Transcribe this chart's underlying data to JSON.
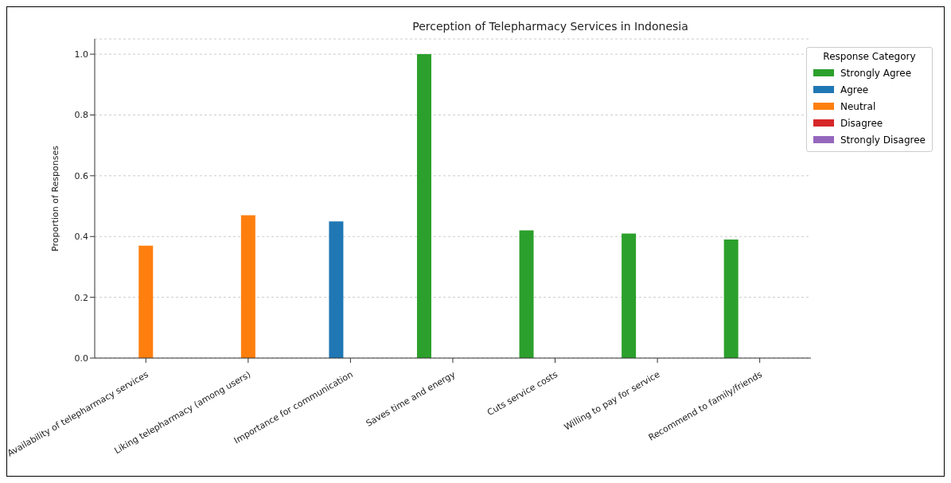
{
  "chart_data": {
    "type": "bar",
    "title": "Perception of Telepharmacy Services in Indonesia",
    "ylabel": "Proportion of Responses",
    "legend_title": "Response Category",
    "categories": [
      "Availability of telepharmacy services",
      "Liking telepharmacy (among users)",
      "Importance for communication",
      "Saves time and energy",
      "Cuts service costs",
      "Willing to pay for service",
      "Recommend to family/friends"
    ],
    "series": [
      {
        "name": "Strongly Agree",
        "color": "#2ca02c",
        "values": [
          0,
          0,
          0,
          1.0,
          0.42,
          0.41,
          0.39
        ]
      },
      {
        "name": "Agree",
        "color": "#1f77b4",
        "values": [
          0,
          0,
          0.45,
          0,
          0,
          0,
          0
        ]
      },
      {
        "name": "Neutral",
        "color": "#ff7f0e",
        "values": [
          0.37,
          0.47,
          0,
          0,
          0,
          0,
          0
        ]
      },
      {
        "name": "Disagree",
        "color": "#d62728",
        "values": [
          0,
          0,
          0,
          0,
          0,
          0,
          0
        ]
      },
      {
        "name": "Strongly Disagree",
        "color": "#9467bd",
        "values": [
          0,
          0,
          0,
          0,
          0,
          0,
          0
        ]
      }
    ],
    "ylim": [
      0,
      1.05
    ],
    "yticks": [
      {
        "value": 0,
        "label": "0.0"
      },
      0.2,
      0.4,
      0.6,
      0.8,
      {
        "value": 1,
        "label": "1.0"
      }
    ],
    "grid": "y",
    "legend": "top right"
  }
}
